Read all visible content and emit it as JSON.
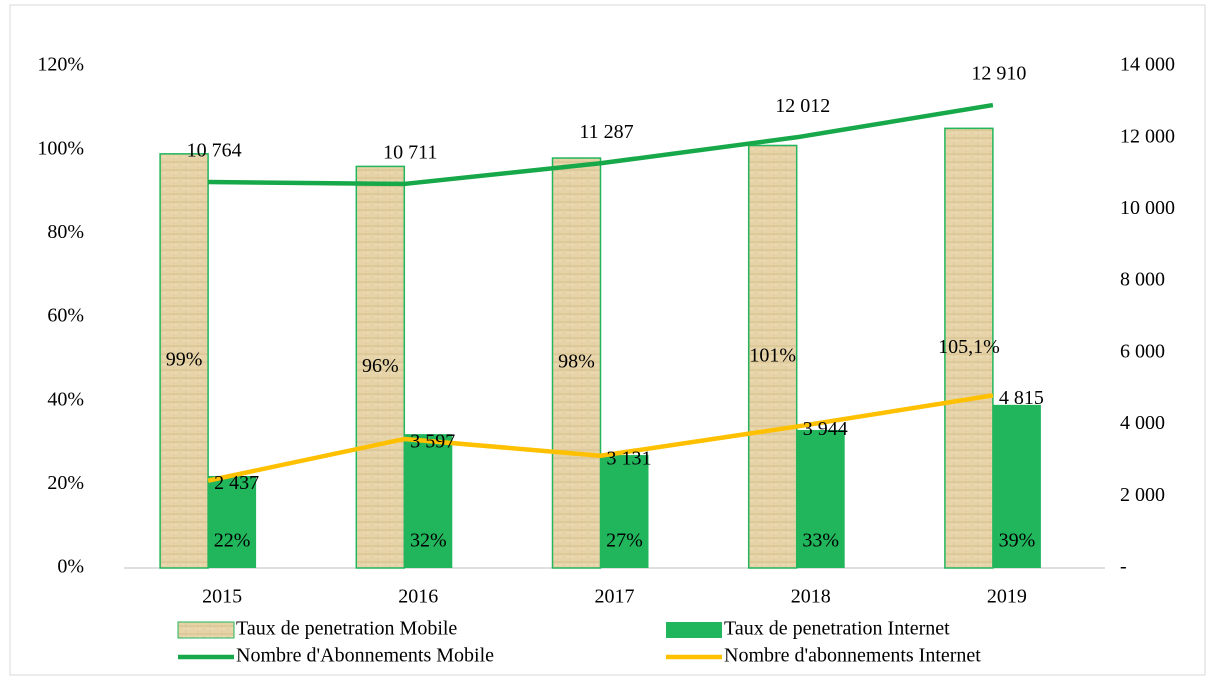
{
  "chart_data": {
    "type": "bar",
    "categories": [
      "2015",
      "2016",
      "2017",
      "2018",
      "2019"
    ],
    "ylim": [
      0,
      120
    ],
    "yticks": [
      {
        "value": 0,
        "label": "0%"
      },
      {
        "value": 20,
        "label": "20%"
      },
      {
        "value": 40,
        "label": "40%"
      },
      {
        "value": 60,
        "label": "60%"
      },
      {
        "value": 80,
        "label": "80%"
      },
      {
        "value": 100,
        "label": "100%"
      },
      {
        "value": 120,
        "label": "120%"
      }
    ],
    "y2lim": [
      0,
      14000
    ],
    "y2ticks": [
      {
        "value": 0,
        "label": "-"
      },
      {
        "value": 2000,
        "label": "2 000"
      },
      {
        "value": 4000,
        "label": "4 000"
      },
      {
        "value": 6000,
        "label": "6 000"
      },
      {
        "value": 8000,
        "label": "8 000"
      },
      {
        "value": 10000,
        "label": "10 000"
      },
      {
        "value": 12000,
        "label": "12 000"
      },
      {
        "value": 14000,
        "label": "14 000"
      }
    ],
    "series": [
      {
        "name": "Taux de penetration Mobile",
        "type": "bar",
        "color": "#e3cfa4",
        "values": [
          99,
          96,
          98,
          101,
          105.1
        ],
        "value_labels": [
          "99%",
          "96%",
          "98%",
          "101%",
          "105,1%"
        ]
      },
      {
        "name": "Taux de penetration Internet",
        "type": "bar",
        "color": "#21b55c",
        "values": [
          22,
          32,
          27,
          33,
          39
        ],
        "value_labels": [
          "22%",
          "32%",
          "27%",
          "33%",
          "39%"
        ]
      },
      {
        "name": "Nombre d'Abonnements Mobile",
        "type": "line",
        "axis": "y2",
        "color": "#17a84a",
        "values": [
          10764,
          10711,
          11287,
          12012,
          12910
        ],
        "value_labels": [
          "10 764",
          "10 711",
          "11 287",
          "12 012",
          "12 910"
        ]
      },
      {
        "name": "Nombre d'abonnements Internet",
        "type": "line",
        "axis": "y2",
        "color": "#ffc000",
        "values": [
          2437,
          3597,
          3131,
          3944,
          4815
        ],
        "value_labels": [
          "2 437",
          "3 597",
          "3 131",
          "3 944",
          "4 815"
        ]
      }
    ]
  }
}
